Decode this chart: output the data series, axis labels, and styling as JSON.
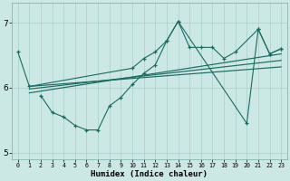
{
  "xlabel": "Humidex (Indice chaleur)",
  "xlim": [
    -0.5,
    23.5
  ],
  "ylim": [
    4.9,
    7.3
  ],
  "yticks": [
    5,
    6,
    7
  ],
  "xticks": [
    0,
    1,
    2,
    3,
    4,
    5,
    6,
    7,
    8,
    9,
    10,
    11,
    12,
    13,
    14,
    15,
    16,
    17,
    18,
    19,
    20,
    21,
    22,
    23
  ],
  "bg_color": "#cce8e4",
  "grid_color": "#a8d0cc",
  "line_color": "#1a6b60",
  "series": [
    {
      "x": [
        0,
        1,
        10,
        11,
        12,
        13,
        14,
        15,
        16,
        17,
        18,
        19,
        21,
        22,
        23
      ],
      "y": [
        6.55,
        6.02,
        6.3,
        6.45,
        6.55,
        6.72,
        7.02,
        6.62,
        6.62,
        6.62,
        6.45,
        6.55,
        6.9,
        6.52,
        6.6
      ]
    },
    {
      "x": [
        2,
        3,
        4,
        5,
        6,
        7,
        8,
        9,
        10,
        11,
        12,
        13,
        14,
        20,
        21,
        22,
        23
      ],
      "y": [
        5.88,
        5.62,
        5.55,
        5.42,
        5.35,
        5.35,
        5.72,
        5.85,
        6.05,
        6.22,
        6.35,
        6.72,
        7.02,
        5.45,
        6.9,
        6.52,
        6.6
      ]
    },
    {
      "x": [
        1,
        23
      ],
      "y": [
        5.92,
        6.52
      ]
    },
    {
      "x": [
        1,
        23
      ],
      "y": [
        5.98,
        6.42
      ]
    },
    {
      "x": [
        1,
        23
      ],
      "y": [
        6.02,
        6.32
      ]
    }
  ]
}
